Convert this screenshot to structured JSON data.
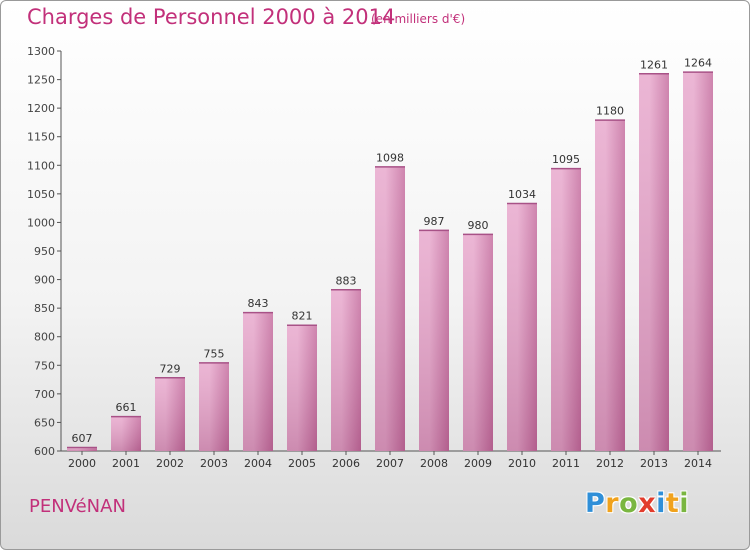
{
  "chart_data": {
    "type": "bar",
    "title": "Charges de Personnel 2000 à 2014",
    "subtitle": "(en milliers d'€)",
    "categories": [
      "2000",
      "2001",
      "2002",
      "2003",
      "2004",
      "2005",
      "2006",
      "2007",
      "2008",
      "2009",
      "2010",
      "2011",
      "2012",
      "2013",
      "2014"
    ],
    "values": [
      607,
      661,
      729,
      755,
      843,
      821,
      883,
      1098,
      987,
      980,
      1034,
      1095,
      1180,
      1261,
      1264
    ],
    "ylim": [
      600,
      1300
    ],
    "yticks": [
      600,
      650,
      700,
      750,
      800,
      850,
      900,
      950,
      1000,
      1050,
      1100,
      1150,
      1200,
      1250,
      1300
    ],
    "grid": false,
    "colors": {
      "bar": "#c66fa0",
      "bar_light": "#e8a9cd",
      "text": "#c2307a"
    }
  },
  "footer": {
    "commune": "PENVéNAN",
    "logo_letters": [
      {
        "char": "P",
        "color": "#2f8fd8"
      },
      {
        "char": "r",
        "color": "#f0a21d"
      },
      {
        "char": "o",
        "color": "#7ab640"
      },
      {
        "char": "x",
        "color": "#e23c2c"
      },
      {
        "char": "i",
        "color": "#2f8fd8"
      },
      {
        "char": "t",
        "color": "#f0a21d"
      },
      {
        "char": "i",
        "color": "#7ab640"
      }
    ]
  }
}
